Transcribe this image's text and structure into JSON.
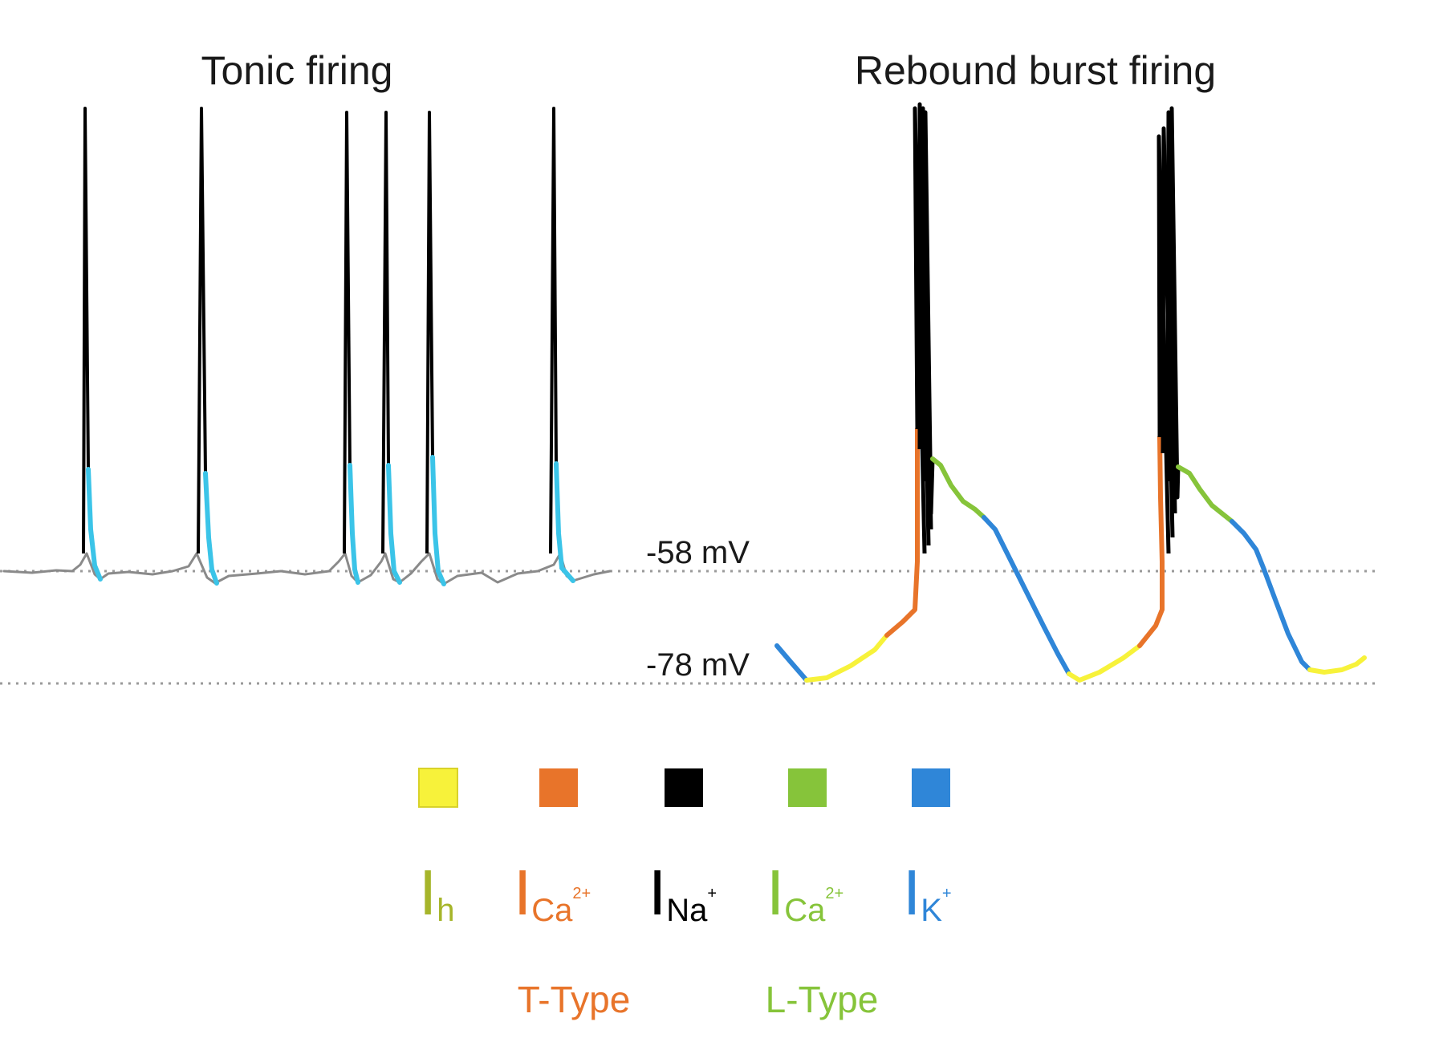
{
  "titles": {
    "left": "Tonic firing",
    "right": "Rebound burst firing"
  },
  "levels": [
    {
      "label": "-58 mV",
      "value": -58
    },
    {
      "label": "-78 mV",
      "value": -78
    }
  ],
  "colors": {
    "Ih": "#f7f23a",
    "ICaT": "#e8742a",
    "INa": "#000000",
    "ICaL": "#86c43a",
    "IK": "#2f86d8",
    "tonic_repol": "#3bc4e8",
    "baseline": "#8a8a8a",
    "ih_text": "#a6b52a"
  },
  "legend": [
    {
      "key": "Ih",
      "symbol": "I",
      "sub": "h",
      "sup": ""
    },
    {
      "key": "ICaT",
      "symbol": "I",
      "sub": "Ca",
      "sup": "2+"
    },
    {
      "key": "INa",
      "symbol": "I",
      "sub": "Na",
      "sup": "+"
    },
    {
      "key": "ICaL",
      "symbol": "I",
      "sub": "Ca",
      "sup": "2+"
    },
    {
      "key": "IK",
      "symbol": "I",
      "sub": "K",
      "sup": "+"
    }
  ],
  "channel_types": {
    "t_type": "T-Type",
    "l_type": "L-Type"
  }
}
